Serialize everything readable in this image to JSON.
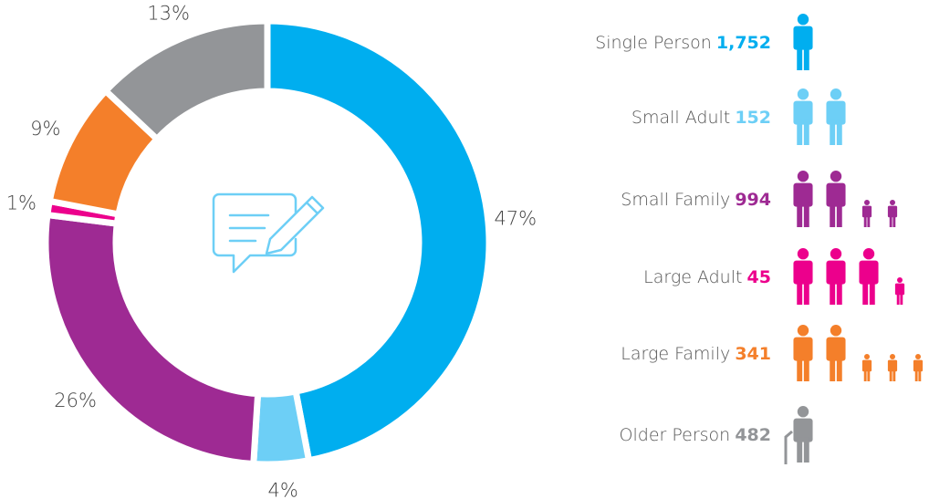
{
  "chart_data": {
    "type": "pie",
    "donut": true,
    "categories": [
      "Single Person",
      "Small Adult",
      "Small Family",
      "Large Adult",
      "Large Family",
      "Older Person"
    ],
    "values": [
      47,
      4,
      26,
      1,
      9,
      13
    ],
    "value_labels": [
      "47%",
      "4%",
      "26%",
      "1%",
      "9%",
      "13%"
    ],
    "colors": [
      "#00aeef",
      "#6dcff6",
      "#9e2a93",
      "#ec008c",
      "#f47f2a",
      "#939598"
    ],
    "counts": [
      1752,
      152,
      994,
      45,
      341,
      482
    ],
    "count_labels": [
      "1,752",
      "152",
      "994",
      "45",
      "341",
      "482"
    ]
  }
}
